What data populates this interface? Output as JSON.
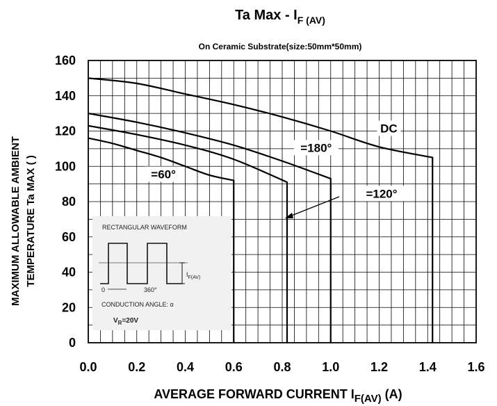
{
  "chart_data": {
    "type": "line",
    "title": "Ta Max - I",
    "title_subscript": "F (AV)",
    "subtitle": "On Ceramic Substrate(size:50mm*50mm)",
    "xlabel": "AVERAGE FORWARD CURRENT  I",
    "xlabel_subscript": "F(AV)",
    "xlabel_unit": " (A)",
    "ylabel_line1": "MAXIMUM ALLOWABLE AMBIENT",
    "ylabel_line2": "TEMPERATURE   Ta MAX (    )",
    "xlim": [
      0.0,
      1.6
    ],
    "ylim": [
      0,
      160
    ],
    "x_ticks": [
      "0.0",
      "0.2",
      "0.4",
      "0.6",
      "0.8",
      "1.0",
      "1.2",
      "1.4",
      "1.6"
    ],
    "y_ticks": [
      "0",
      "20",
      "40",
      "60",
      "80",
      "100",
      "120",
      "140",
      "160"
    ],
    "grid": true,
    "series": [
      {
        "name": "DC",
        "x": [
          0.0,
          0.2,
          0.4,
          0.6,
          0.8,
          1.0,
          1.2,
          1.42,
          1.42
        ],
        "y": [
          150,
          147,
          141,
          135,
          128,
          120,
          111,
          105,
          0
        ]
      },
      {
        "name": "=180°",
        "x": [
          0.0,
          0.2,
          0.4,
          0.6,
          0.8,
          1.0,
          1.0
        ],
        "y": [
          130,
          125,
          119,
          112,
          103,
          93,
          0
        ]
      },
      {
        "name": "=120°",
        "x": [
          0.0,
          0.2,
          0.4,
          0.6,
          0.82,
          0.82
        ],
        "y": [
          123,
          118,
          112,
          104,
          91,
          0
        ]
      },
      {
        "name": "=60°",
        "x": [
          0.0,
          0.1,
          0.2,
          0.3,
          0.4,
          0.5,
          0.6,
          0.6
        ],
        "y": [
          116,
          113,
          109,
          105,
          100,
          95,
          92,
          0
        ]
      }
    ],
    "annotations": [
      {
        "text": "DC",
        "x": 1.24,
        "y": 120
      },
      {
        "text": "=180°",
        "x": 0.94,
        "y": 109
      },
      {
        "text": "=120°",
        "x": 1.21,
        "y": 83
      },
      {
        "text": "=60°",
        "x": 0.31,
        "y": 94
      }
    ],
    "inset": {
      "title": "RECTANGULAR WAVEFORM",
      "label_0": "0",
      "label_360": "360°",
      "label_if": "I",
      "label_if_sub": "F(AV)",
      "label_conduction": "CONDUCTION ANGLE: α",
      "label_vr": "V",
      "label_vr_sub": "R",
      "label_vr_val": "=20V"
    }
  }
}
